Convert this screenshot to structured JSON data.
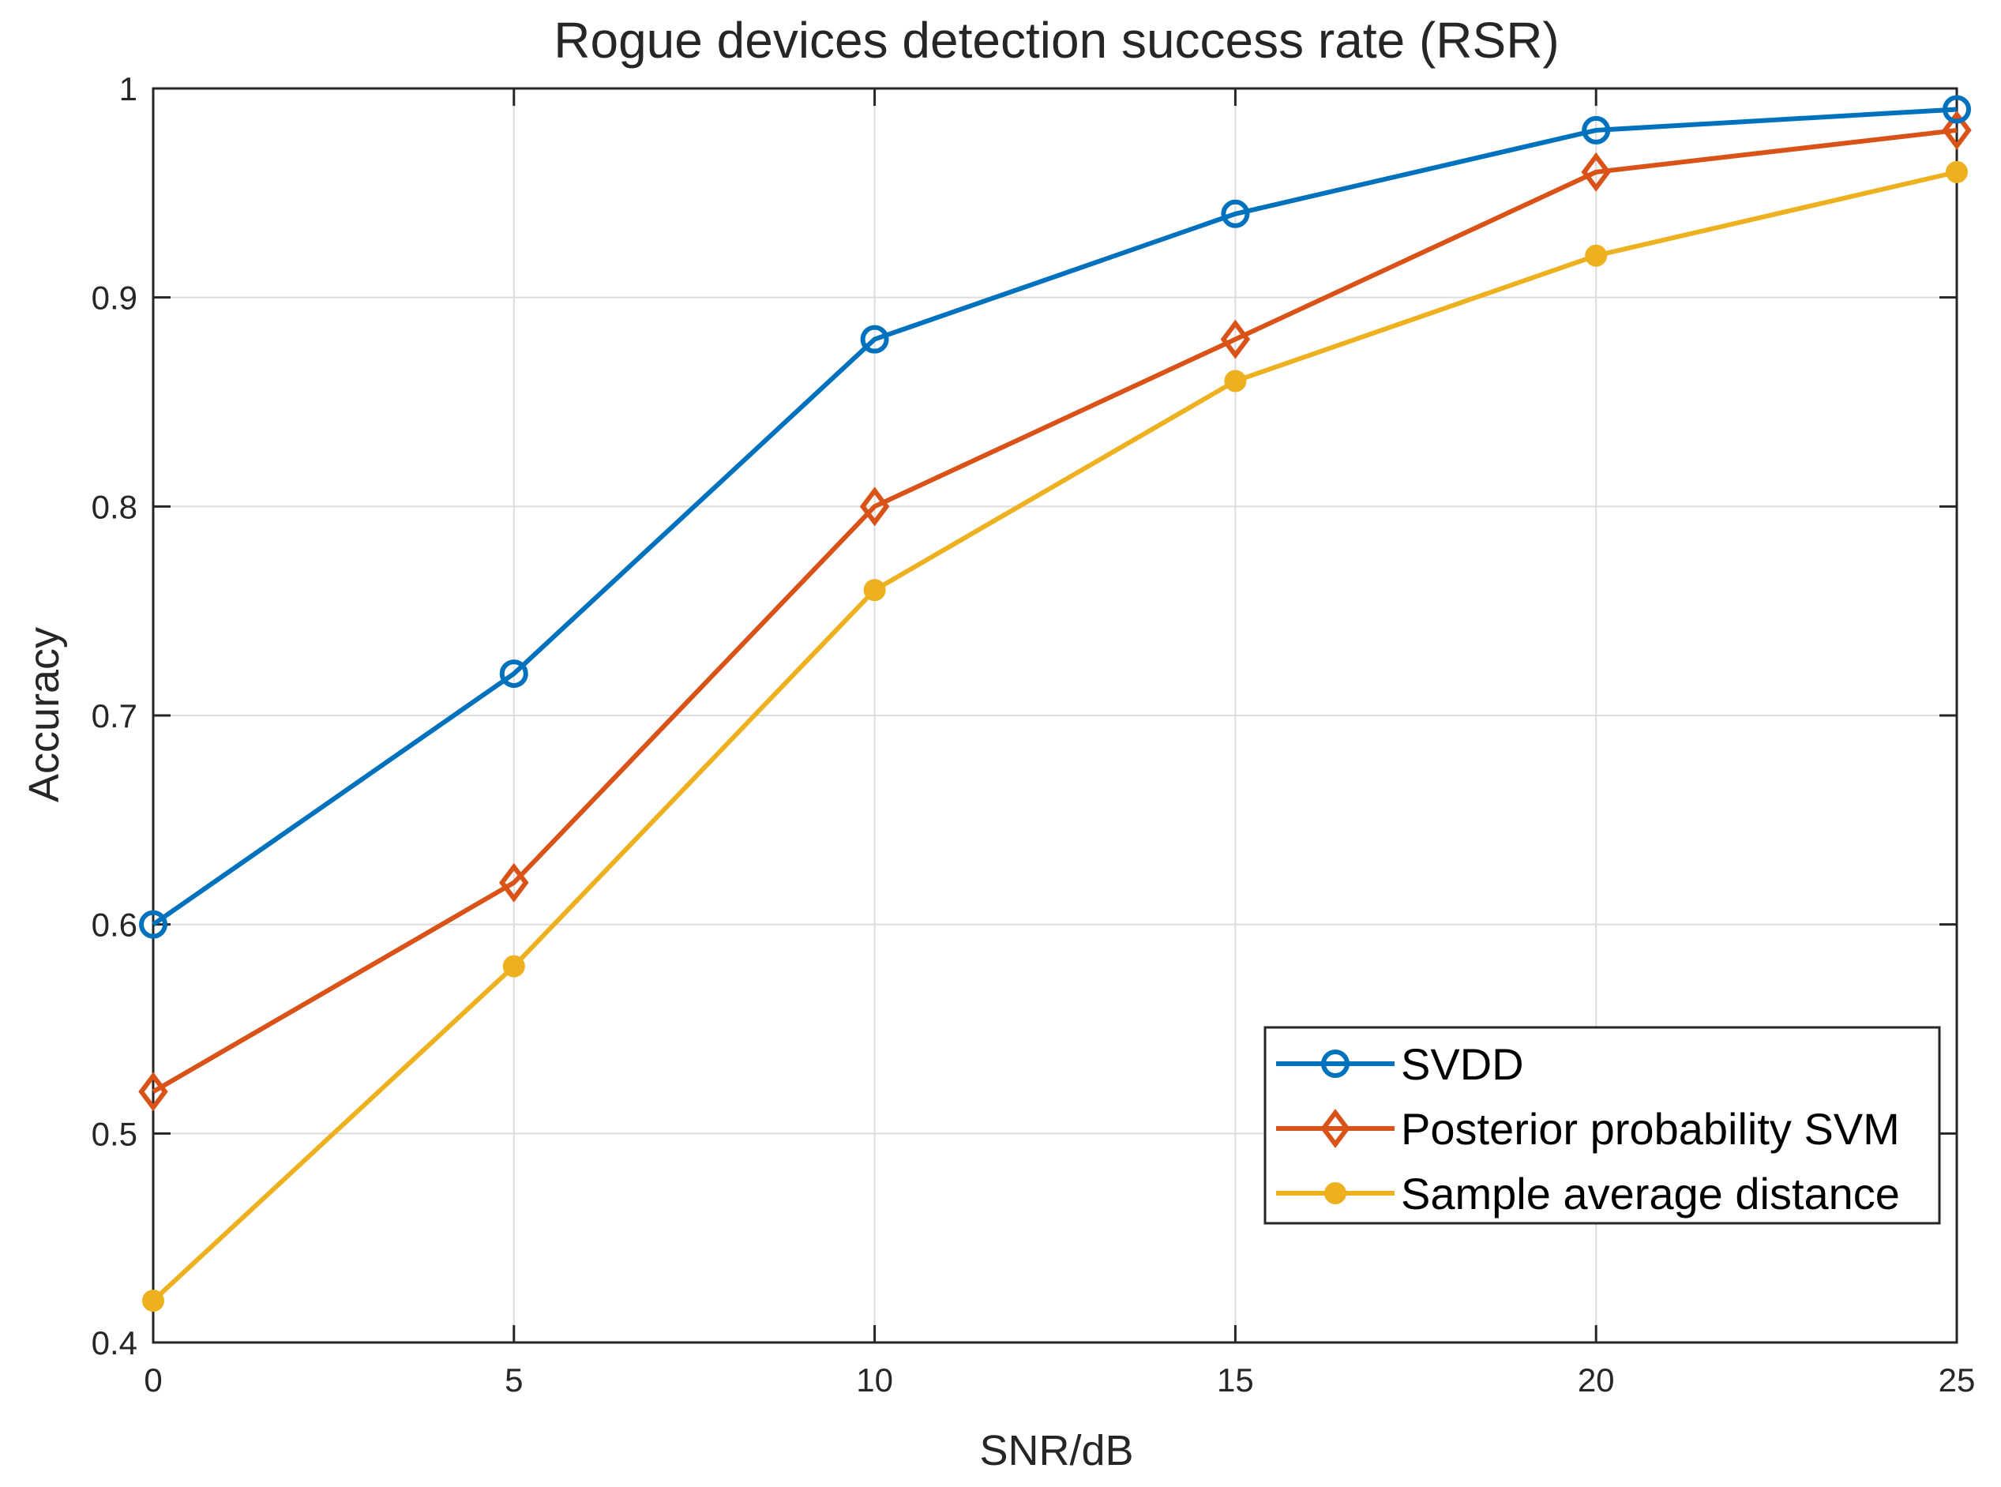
{
  "chart_data": {
    "type": "line",
    "title": "Rogue devices detection success rate (RSR)",
    "xlabel": "SNR/dB",
    "ylabel": "Accuracy",
    "x": [
      0,
      5,
      10,
      15,
      20,
      25
    ],
    "xlim": [
      0,
      25
    ],
    "ylim": [
      0.4,
      1
    ],
    "xticks": [
      0,
      5,
      10,
      15,
      20,
      25
    ],
    "xtick_labels": [
      "0",
      "5",
      "10",
      "15",
      "20",
      "25"
    ],
    "yticks": [
      0.4,
      0.5,
      0.6,
      0.7,
      0.8,
      0.9,
      1
    ],
    "ytick_labels": [
      "0.4",
      "0.5",
      "0.6",
      "0.7",
      "0.8",
      "0.9",
      "1"
    ],
    "grid": true,
    "legend_position": "bottom-right",
    "series": [
      {
        "name": "SVDD",
        "color": "#0072BD",
        "marker": "circle",
        "values": [
          0.6,
          0.72,
          0.88,
          0.94,
          0.98,
          0.99
        ]
      },
      {
        "name": "Posterior probability SVM",
        "color": "#D95319",
        "marker": "diamond",
        "values": [
          0.52,
          0.62,
          0.8,
          0.88,
          0.96,
          0.98
        ]
      },
      {
        "name": "Sample average distance",
        "color": "#EDB120",
        "marker": "dot",
        "values": [
          0.42,
          0.58,
          0.76,
          0.86,
          0.92,
          0.96
        ]
      }
    ]
  }
}
